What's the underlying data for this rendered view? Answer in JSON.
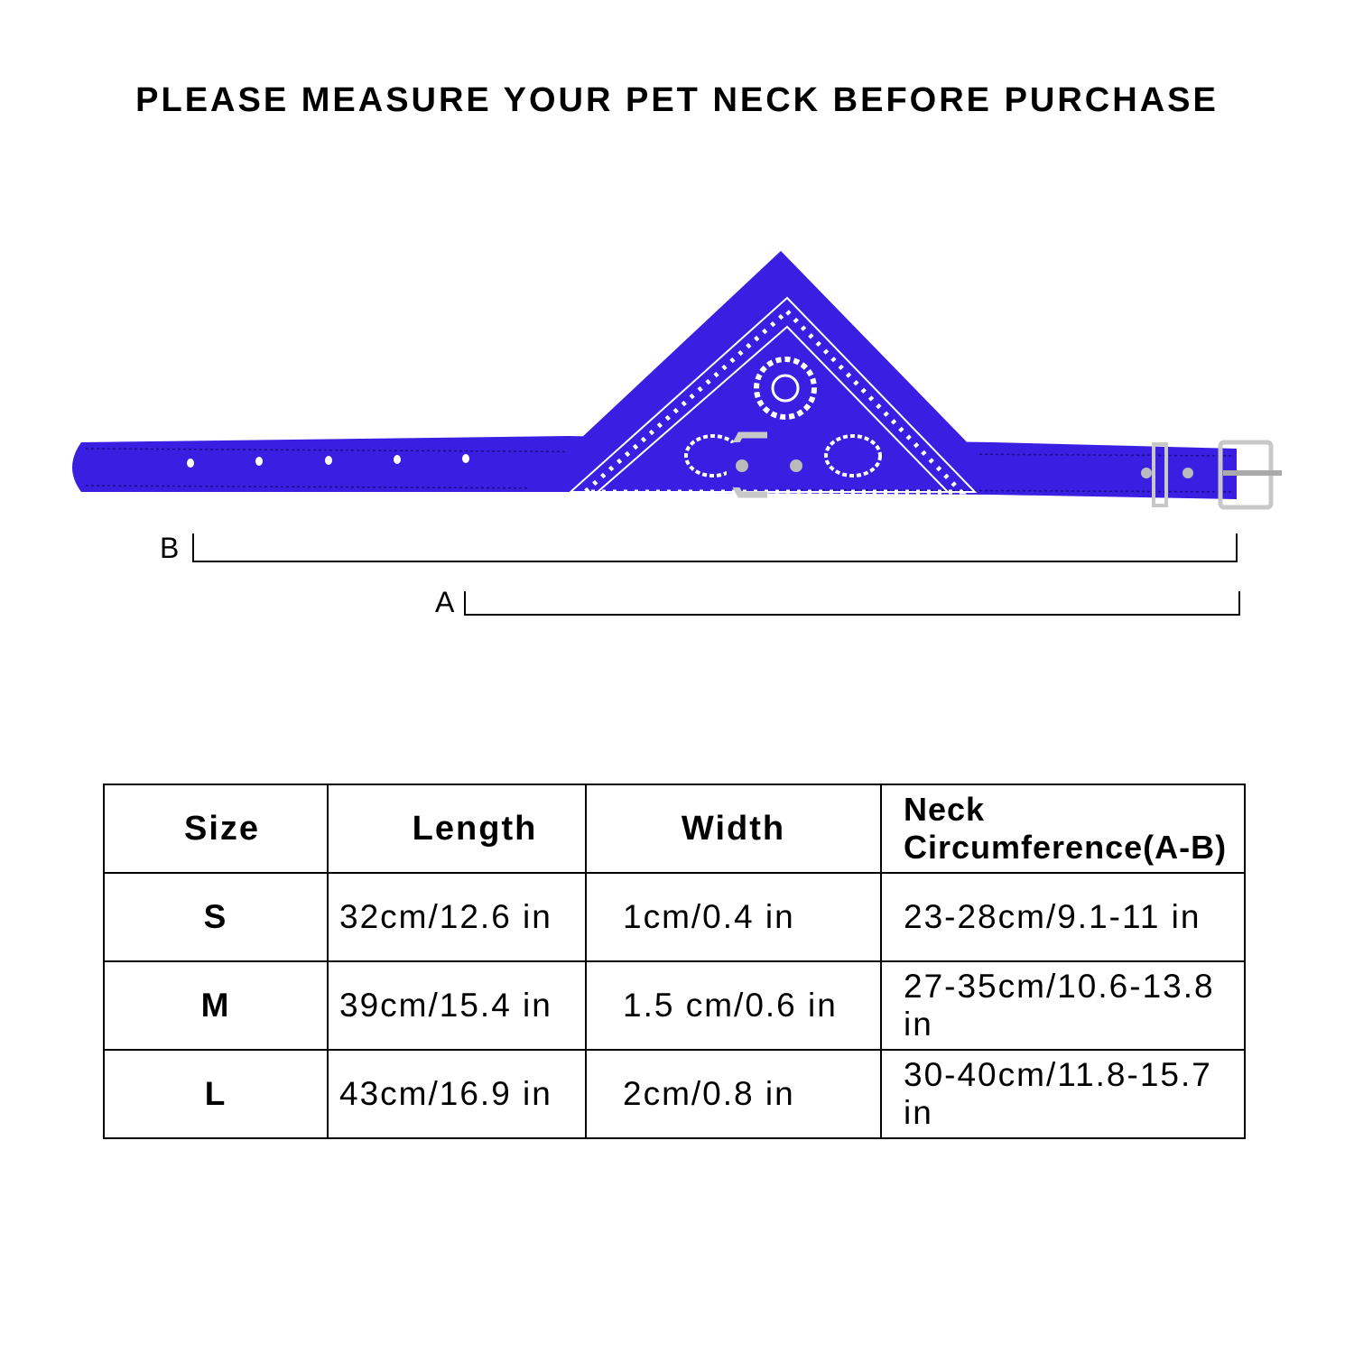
{
  "header": {
    "title": "PLEASE MEASURE YOUR PET NECK BEFORE PURCHASE"
  },
  "diagram": {
    "label_b": "B",
    "label_a": "A",
    "collar_color": "#3a1fe2",
    "pattern_color": "#ffffff"
  },
  "table": {
    "headers": [
      "Size",
      "Length",
      "Width",
      "Neck Circumference(A-B)"
    ],
    "rows": [
      [
        "S",
        "32cm/12.6 in",
        "1cm/0.4 in",
        "23-28cm/9.1-11 in"
      ],
      [
        "M",
        "39cm/15.4 in",
        "1.5 cm/0.6 in",
        "27-35cm/10.6-13.8 in"
      ],
      [
        "L",
        "43cm/16.9 in",
        "2cm/0.8 in",
        "30-40cm/11.8-15.7 in"
      ]
    ]
  }
}
